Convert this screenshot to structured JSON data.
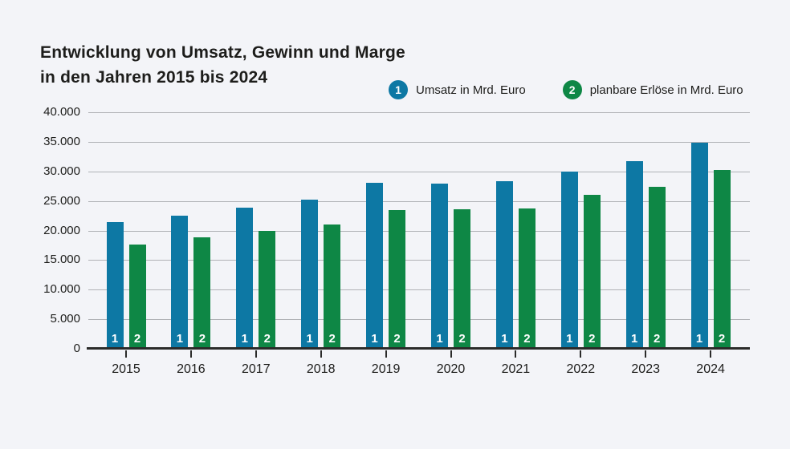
{
  "title": {
    "line1": "Entwicklung von Umsatz, Gewinn und Marge",
    "line2": "in den Jahren 2015 bis 2024"
  },
  "legend": [
    {
      "marker": "1",
      "label": "Umsatz in Mrd. Euro",
      "color": "#0d78a4"
    },
    {
      "marker": "2",
      "label": "planbare Erlöse in Mrd. Euro",
      "color": "#0e8745"
    }
  ],
  "chart_data": {
    "type": "bar",
    "title": "Entwicklung von Umsatz, Gewinn und Marge in den Jahren 2015 bis 2024",
    "categories": [
      "2015",
      "2016",
      "2017",
      "2018",
      "2019",
      "2020",
      "2021",
      "2022",
      "2023",
      "2024"
    ],
    "series": [
      {
        "name": "Umsatz in Mrd. Euro",
        "marker": "1",
        "color": "#0d78a4",
        "values": [
          21400,
          22500,
          23900,
          25200,
          28100,
          27900,
          28400,
          30000,
          31800,
          34800
        ]
      },
      {
        "name": "planbare Erlöse in Mrd. Euro",
        "marker": "2",
        "color": "#0e8745",
        "values": [
          17700,
          18800,
          20000,
          21000,
          23400,
          23600,
          23800,
          26000,
          27400,
          30300
        ]
      }
    ],
    "xlabel": "",
    "ylabel": "",
    "ylim": [
      0,
      40000
    ],
    "y_ticks": [
      {
        "value": 40000,
        "label": "40.000"
      },
      {
        "value": 35000,
        "label": "35.000"
      },
      {
        "value": 30000,
        "label": "30.000"
      },
      {
        "value": 25000,
        "label": "25.000"
      },
      {
        "value": 20000,
        "label": "20.000"
      },
      {
        "value": 15000,
        "label": "15.000"
      },
      {
        "value": 10000,
        "label": "10.000"
      },
      {
        "value": 5000,
        "label": "5.000"
      },
      {
        "value": 0,
        "label": "0"
      }
    ],
    "grid": true,
    "legend_position": "top-right"
  },
  "colors": {
    "background": "#f3f4f8",
    "grid": "#b0b2b6",
    "axis": "#2b2b2a",
    "text": "#1d1d1b"
  }
}
